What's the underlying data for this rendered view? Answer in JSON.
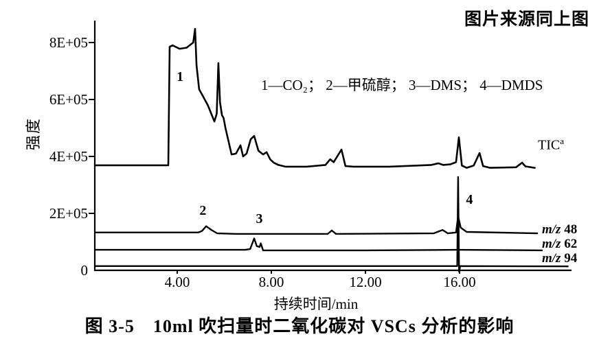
{
  "source_note": "图片来源同上图",
  "caption": "图 3-5　10ml 吹扫量时二氧化碳对 VSCs 分析的影响",
  "legend": {
    "text": "1—CO₂； 2—甲硫醇； 3—DMS； 4—DMDS",
    "items": [
      {
        "num": "1",
        "compound": "CO₂"
      },
      {
        "num": "2",
        "compound": "甲硫醇"
      },
      {
        "num": "3",
        "compound": "DMS"
      },
      {
        "num": "4",
        "compound": "DMDS"
      }
    ]
  },
  "trace_labels": {
    "tic": {
      "text": "TIC",
      "sup": "a"
    },
    "mz48": {
      "prefix": "m/z",
      "value": "48"
    },
    "mz62": {
      "prefix": "m/z",
      "value": "62"
    },
    "mz94": {
      "prefix": "m/z",
      "value": "94"
    }
  },
  "chart_data": {
    "type": "line",
    "title": "图 3-5 10ml 吹扫量时二氧化碳对 VSCs 分析的影响",
    "xlabel": "持续时间/min",
    "ylabel": "强度",
    "xlim": [
      0,
      21
    ],
    "ylim": [
      0,
      880000
    ],
    "grid": false,
    "legend_position": "inline-top",
    "x_ticks": [
      {
        "value": 4,
        "label": "4.00"
      },
      {
        "value": 8,
        "label": "8.00"
      },
      {
        "value": 12,
        "label": "12.00"
      },
      {
        "value": 16,
        "label": "16.00"
      }
    ],
    "y_ticks": [
      {
        "value": 800000,
        "label": "8E+05"
      },
      {
        "value": 600000,
        "label": "6E+05"
      },
      {
        "value": 400000,
        "label": "4E+05"
      },
      {
        "value": 200000,
        "label": "2E+05"
      },
      {
        "value": 0,
        "label": "0"
      }
    ],
    "series": [
      {
        "name": "TIC",
        "points": [
          [
            0.5,
            369000
          ],
          [
            3.55,
            369000
          ],
          [
            3.62,
            369000
          ],
          [
            3.68,
            785000
          ],
          [
            3.8,
            790000
          ],
          [
            4.1,
            778000
          ],
          [
            4.4,
            782000
          ],
          [
            4.68,
            800000
          ],
          [
            4.76,
            848000
          ],
          [
            4.82,
            720000
          ],
          [
            4.93,
            636000
          ],
          [
            5.3,
            580000
          ],
          [
            5.58,
            523000
          ],
          [
            5.68,
            550000
          ],
          [
            5.75,
            728000
          ],
          [
            5.82,
            590000
          ],
          [
            5.9,
            545000
          ],
          [
            5.97,
            535000
          ],
          [
            6.05,
            500000
          ],
          [
            6.31,
            407000
          ],
          [
            6.5,
            410000
          ],
          [
            6.69,
            439000
          ],
          [
            6.8,
            400000
          ],
          [
            6.95,
            410000
          ],
          [
            7.12,
            460000
          ],
          [
            7.27,
            472000
          ],
          [
            7.45,
            420000
          ],
          [
            7.65,
            407000
          ],
          [
            7.8,
            415000
          ],
          [
            7.95,
            390000
          ],
          [
            8.1,
            378000
          ],
          [
            8.3,
            370000
          ],
          [
            8.6,
            364000
          ],
          [
            9.5,
            364000
          ],
          [
            10.3,
            370000
          ],
          [
            10.5,
            390000
          ],
          [
            10.65,
            380000
          ],
          [
            10.98,
            424000
          ],
          [
            11.15,
            366000
          ],
          [
            11.5,
            364000
          ],
          [
            13.0,
            364000
          ],
          [
            14.8,
            370000
          ],
          [
            15.1,
            376000
          ],
          [
            15.3,
            370000
          ],
          [
            15.6,
            372000
          ],
          [
            15.85,
            380000
          ],
          [
            15.97,
            467000
          ],
          [
            16.1,
            368000
          ],
          [
            16.3,
            360000
          ],
          [
            16.6,
            368000
          ],
          [
            16.85,
            412000
          ],
          [
            17.0,
            366000
          ],
          [
            17.3,
            360000
          ],
          [
            18.4,
            362000
          ],
          [
            18.66,
            378000
          ],
          [
            18.8,
            365000
          ],
          [
            19.2,
            360000
          ]
        ]
      },
      {
        "name": "m/z 48",
        "points": [
          [
            0.5,
            133000
          ],
          [
            4.9,
            133000
          ],
          [
            5.05,
            138000
          ],
          [
            5.23,
            155000
          ],
          [
            5.45,
            142000
          ],
          [
            5.7,
            130000
          ],
          [
            6.5,
            128000
          ],
          [
            10.4,
            128000
          ],
          [
            10.57,
            140000
          ],
          [
            10.75,
            128000
          ],
          [
            14.9,
            130000
          ],
          [
            15.28,
            142000
          ],
          [
            15.5,
            130000
          ],
          [
            15.85,
            133000
          ],
          [
            15.94,
            190000
          ],
          [
            16.05,
            150000
          ],
          [
            16.3,
            135000
          ],
          [
            19.3,
            130000
          ]
        ]
      },
      {
        "name": "m/z 62",
        "points": [
          [
            0.5,
            72000
          ],
          [
            6.9,
            72000
          ],
          [
            7.1,
            75000
          ],
          [
            7.27,
            112000
          ],
          [
            7.38,
            85000
          ],
          [
            7.5,
            82000
          ],
          [
            7.55,
            95000
          ],
          [
            7.65,
            70000
          ],
          [
            8.0,
            70000
          ],
          [
            12.0,
            70000
          ],
          [
            15.88,
            72000
          ],
          [
            19.5,
            70000
          ]
        ]
      },
      {
        "name": "m/z 94",
        "points": [
          [
            0.5,
            15000
          ],
          [
            15.9,
            15000
          ],
          [
            15.94,
            328000
          ],
          [
            15.98,
            -5000
          ],
          [
            16.03,
            15000
          ],
          [
            20.6,
            14000
          ]
        ]
      }
    ],
    "peak_annotations": [
      {
        "label": "1",
        "t": 4.15,
        "v": 677000,
        "compound": "CO₂"
      },
      {
        "label": "2",
        "t": 5.12,
        "v": 207000,
        "compound": "甲硫醇"
      },
      {
        "label": "3",
        "t": 7.52,
        "v": 178000,
        "compound": "DMS"
      },
      {
        "label": "4",
        "t": 16.45,
        "v": 246000,
        "compound": "DMDS"
      }
    ]
  }
}
